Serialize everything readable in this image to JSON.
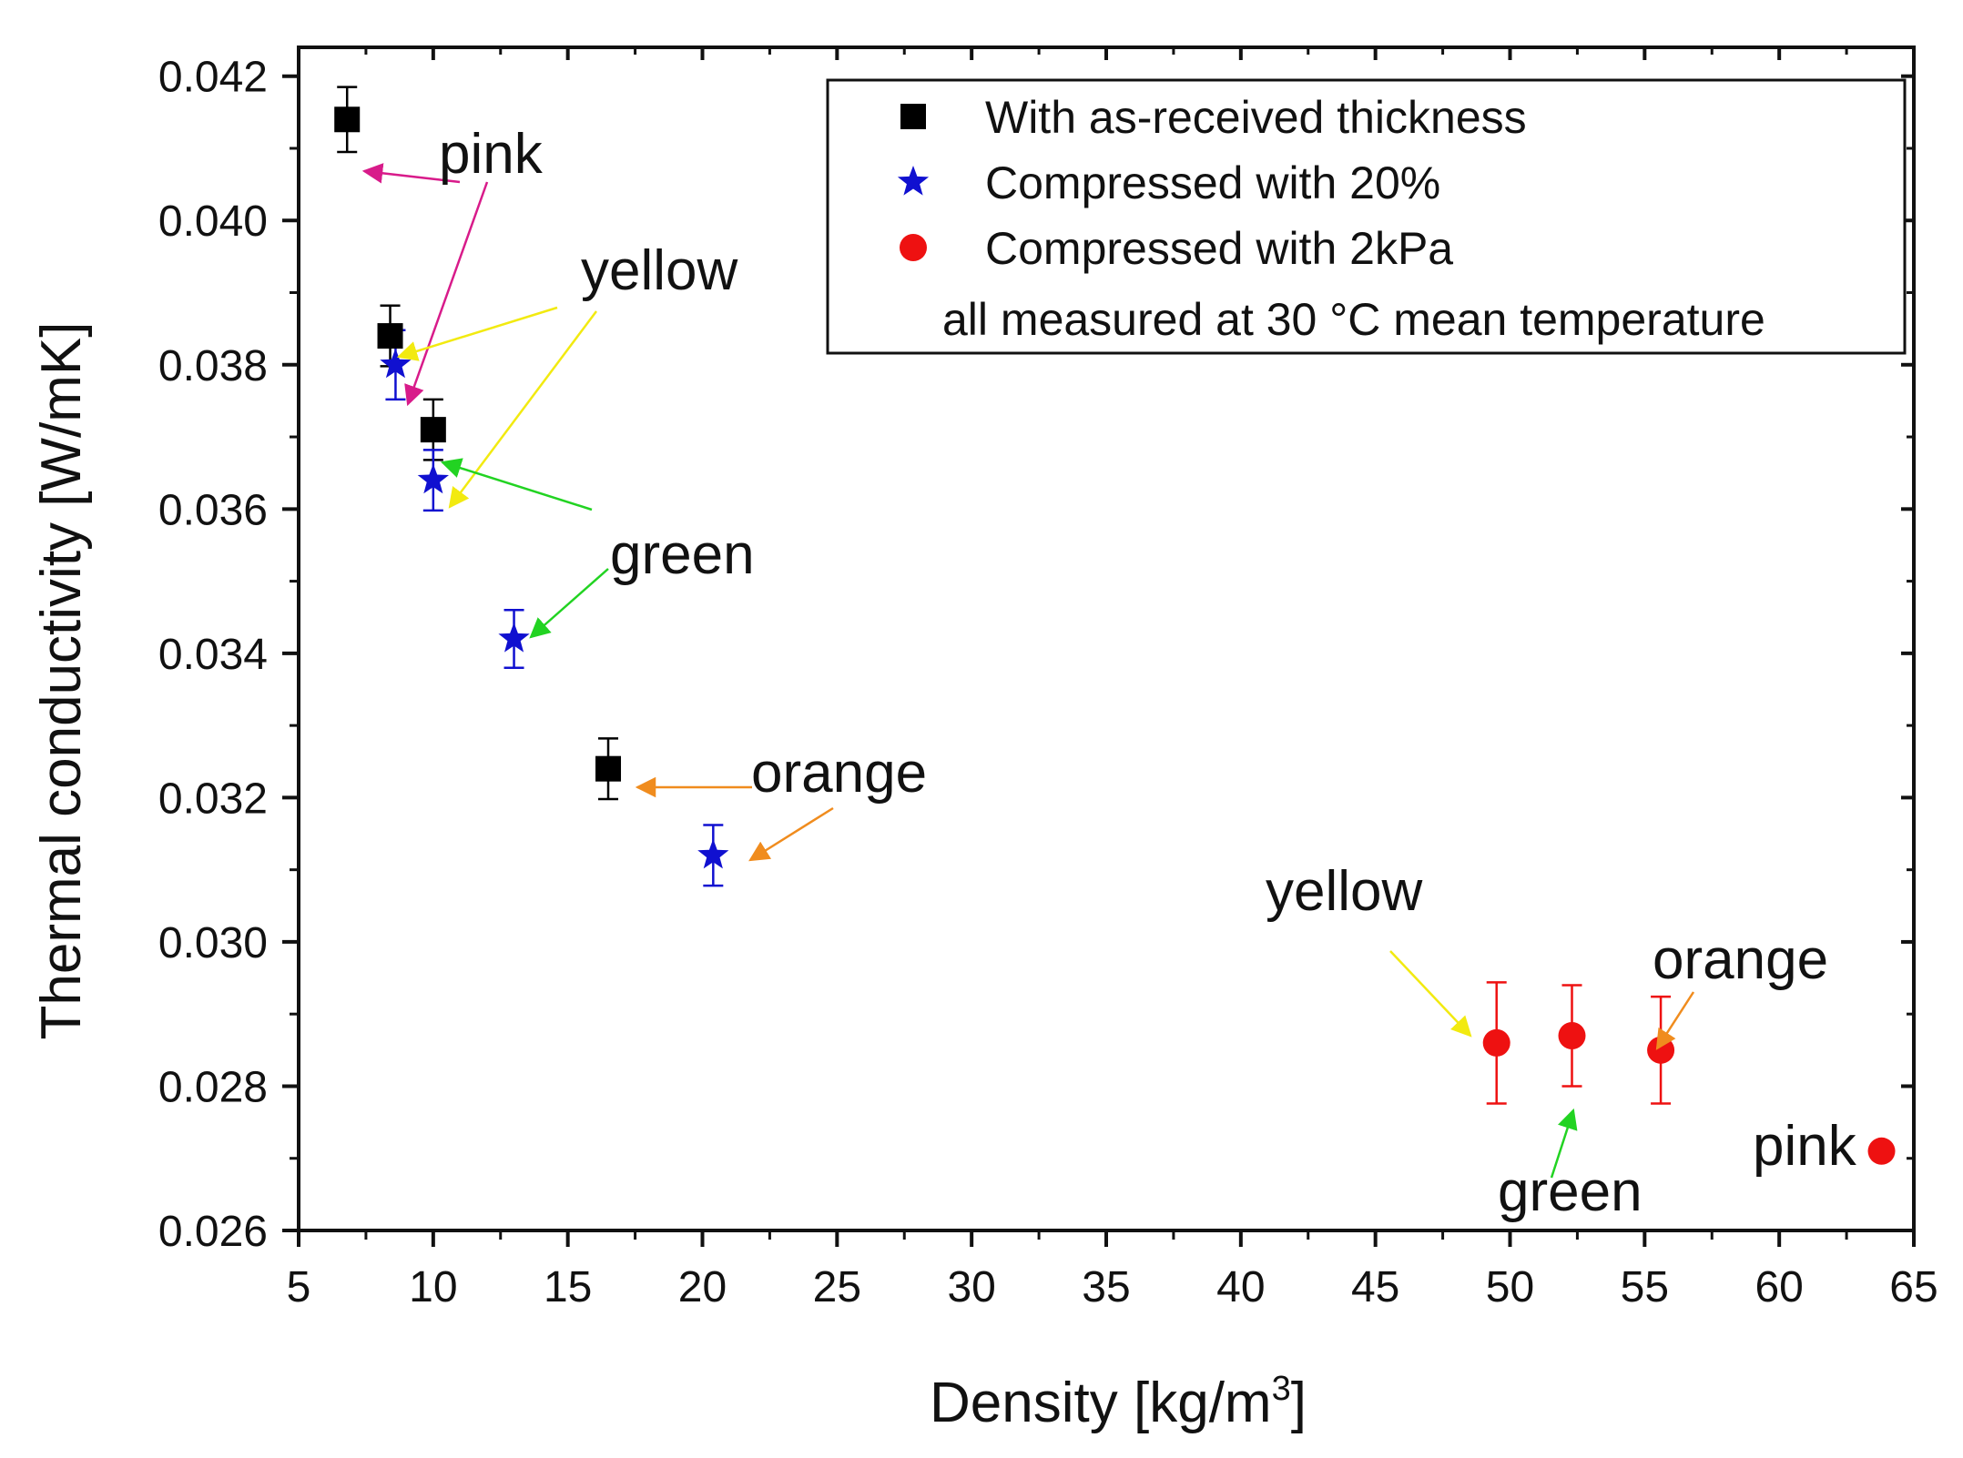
{
  "chart_data": {
    "type": "scatter",
    "title": "",
    "xlabel": "Density [kg/m",
    "xlabel_superscript": "3",
    "xlabel_suffix": "]",
    "ylabel": "Thermal conductivity [W/mK]",
    "xlim": [
      5,
      65
    ],
    "ylim": [
      0.026,
      0.0424
    ],
    "xticks": [
      5,
      10,
      15,
      20,
      25,
      30,
      35,
      40,
      45,
      50,
      55,
      60,
      65
    ],
    "xtick_labels": [
      "5",
      "10",
      "15",
      "20",
      "25",
      "30",
      "35",
      "40",
      "45",
      "50",
      "55",
      "60",
      "65"
    ],
    "yticks": [
      0.026,
      0.028,
      0.03,
      0.032,
      0.034,
      0.036,
      0.038,
      0.04,
      0.042
    ],
    "ytick_labels": [
      "0.026",
      "0.028",
      "0.030",
      "0.032",
      "0.034",
      "0.036",
      "0.038",
      "0.040",
      "0.042"
    ],
    "grid": false,
    "legend_position": "top-right",
    "legend_note": "all measured at 30 °C mean temperature",
    "series": [
      {
        "name": "With as-received thickness",
        "marker": "square",
        "color": "#000000",
        "points": [
          {
            "x": 6.8,
            "y": 0.0414,
            "err": 0.00045
          },
          {
            "x": 8.4,
            "y": 0.0384,
            "err": 0.00042
          },
          {
            "x": 10.0,
            "y": 0.0371,
            "err": 0.00042
          },
          {
            "x": 16.5,
            "y": 0.0324,
            "err": 0.00042
          }
        ]
      },
      {
        "name": "Compressed with 20%",
        "marker": "star",
        "color": "#1010d0",
        "points": [
          {
            "x": 8.6,
            "y": 0.038,
            "err": 0.00048
          },
          {
            "x": 10.0,
            "y": 0.0364,
            "err": 0.00042
          },
          {
            "x": 13.0,
            "y": 0.0342,
            "err": 0.0004
          },
          {
            "x": 20.4,
            "y": 0.0312,
            "err": 0.00042
          }
        ]
      },
      {
        "name": "Compressed with 2kPa",
        "marker": "circle",
        "color": "#ee1111",
        "points": [
          {
            "x": 49.5,
            "y": 0.0286,
            "err": 0.00084
          },
          {
            "x": 52.3,
            "y": 0.0287,
            "err": 0.0007
          },
          {
            "x": 55.6,
            "y": 0.0285,
            "err": 0.00074
          },
          {
            "x": 63.8,
            "y": 0.0271,
            "err": 0
          }
        ]
      }
    ],
    "annotations": [
      {
        "text": "pink",
        "color": "#d81b8a"
      },
      {
        "text": "yellow",
        "color": "#f2ea10"
      },
      {
        "text": "green",
        "color": "#22d322"
      },
      {
        "text": "orange",
        "color": "#f08c1e"
      },
      {
        "text": "yellow",
        "color": "#f2ea10"
      },
      {
        "text": "orange",
        "color": "#f08c1e"
      },
      {
        "text": "green",
        "color": "#22d322"
      },
      {
        "text": "pink",
        "color": "#d81b8a"
      }
    ]
  }
}
